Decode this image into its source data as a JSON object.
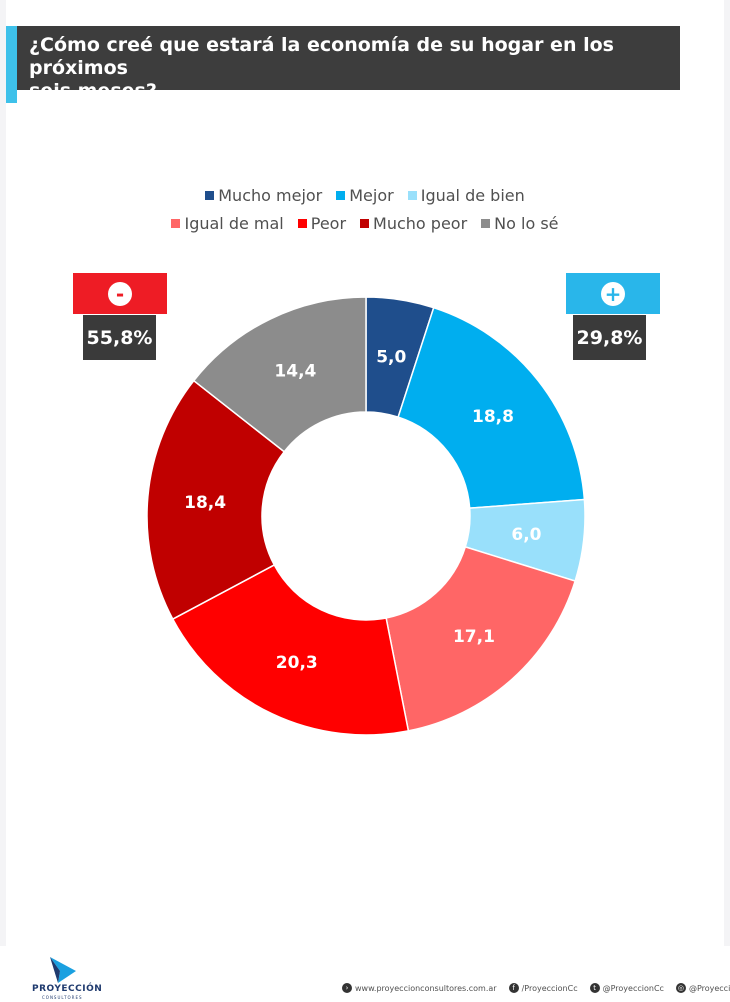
{
  "title": {
    "line1": "¿Cómo creé que estará la economía de su hogar en los próximos",
    "line2": "seis meses?"
  },
  "colors": {
    "title_bg": "#3d3d3d",
    "accent": "#3ec1ea",
    "negative_badge": "#ee1c25",
    "positive_badge": "#29b6ea"
  },
  "badges": {
    "negative": {
      "symbol": "-",
      "icon": "minus-icon",
      "value": "55,8%"
    },
    "positive": {
      "symbol": "+",
      "icon": "plus-icon",
      "value": "29,8%"
    }
  },
  "chart_data": {
    "type": "pie",
    "style": "donut",
    "legend_position": "top",
    "series": [
      {
        "name": "Mucho mejor",
        "value": 5.0,
        "label": "5,0",
        "color": "#1f4e8c"
      },
      {
        "name": "Mejor",
        "value": 18.8,
        "label": "18,8",
        "color": "#00aeef"
      },
      {
        "name": "Igual de bien",
        "value": 6.0,
        "label": "6,0",
        "color": "#99e0fb"
      },
      {
        "name": "Igual de mal",
        "value": 17.1,
        "label": "17,1",
        "color": "#ff6666"
      },
      {
        "name": "Peor",
        "value": 20.3,
        "label": "20,3",
        "color": "#ff0000"
      },
      {
        "name": "Mucho peor",
        "value": 18.4,
        "label": "18,4",
        "color": "#c00000"
      },
      {
        "name": "No lo sé",
        "value": 14.4,
        "label": "14,4",
        "color": "#8c8c8c"
      }
    ]
  },
  "footer": {
    "brand": "PROYECCIÓN",
    "brand_sub": "CONSULTORES",
    "links": [
      {
        "icon": "arrow-icon",
        "text": "www.proyeccionconsultores.com.ar"
      },
      {
        "icon": "facebook-icon",
        "text": "/ProyeccionCc"
      },
      {
        "icon": "twitter-icon",
        "text": "@ProyeccionCc"
      },
      {
        "icon": "instagram-icon",
        "text": "@ProyeccionCc"
      }
    ]
  }
}
